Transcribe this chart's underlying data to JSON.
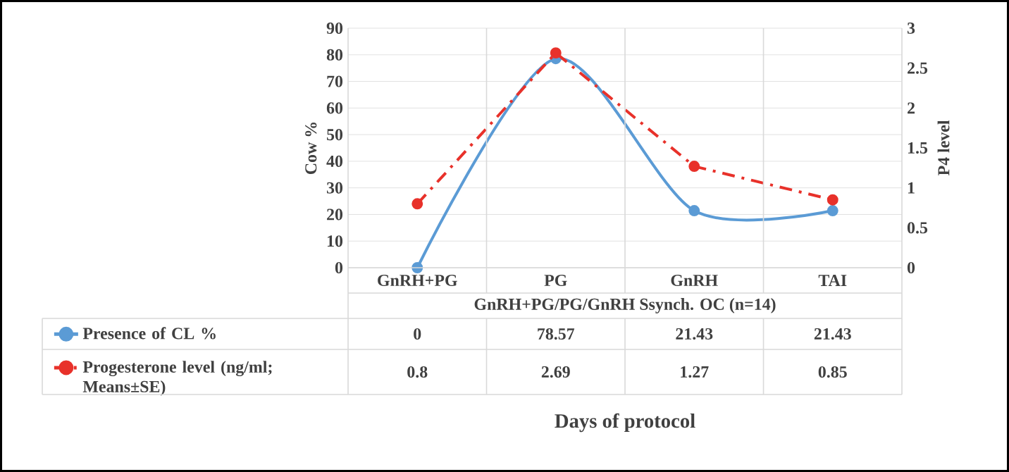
{
  "chart_data": {
    "type": "line",
    "ylabel": "Cow %",
    "y2label": "P4 level",
    "categories": [
      "GnRH+PG",
      "PG",
      "GnRH",
      "TAI"
    ],
    "annotations": [
      "GnRH+PG/PG/GnRH Ssynch. OC (n=14)",
      "Days of protocol"
    ],
    "series": [
      {
        "name": "Presence of CL %",
        "color": "#5b9bd5",
        "values": [
          0,
          78.57,
          21.43,
          21.43
        ],
        "line_style": "solid"
      },
      {
        "name": "Progesterone level (ng/ml; Means±SE)",
        "color": "#e8312a",
        "values": [
          0.8,
          2.69,
          1.27,
          0.85
        ],
        "axis": "y2",
        "line_style": "dashed"
      }
    ],
    "ylim": [
      0,
      90
    ],
    "yticks": [
      0,
      10,
      20,
      30,
      40,
      50,
      60,
      70,
      80,
      90
    ],
    "y2lim": [
      0,
      3
    ],
    "y2ticks": [
      0,
      0.5,
      1,
      1.5,
      2,
      2.5,
      3
    ],
    "grid": "y",
    "legend": "bottom",
    "marker": "circle",
    "data_labels": true
  }
}
